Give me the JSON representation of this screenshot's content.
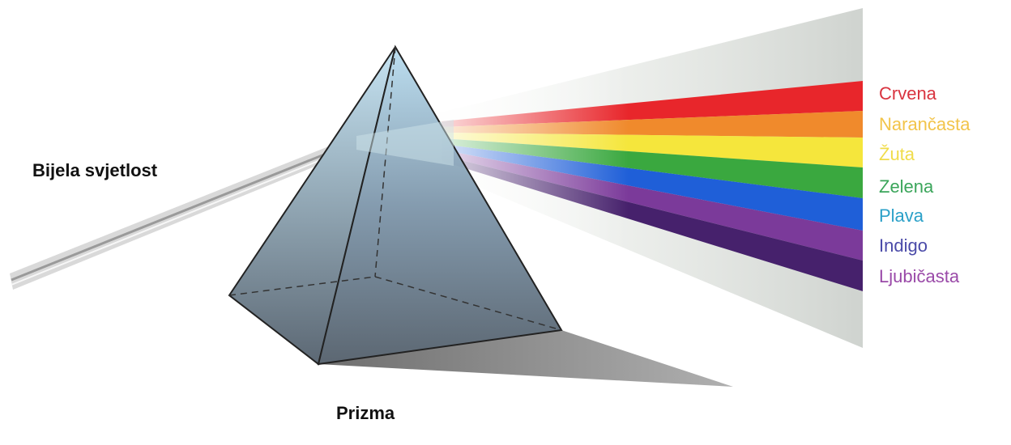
{
  "labels": {
    "white_light": "Bijela svjetlost",
    "prism": "Prizma"
  },
  "spectrum": [
    "Crvena",
    "Narančasta",
    "Žuta",
    "Zelena",
    "Plava",
    "Indigo",
    "Ljubičasta"
  ]
}
